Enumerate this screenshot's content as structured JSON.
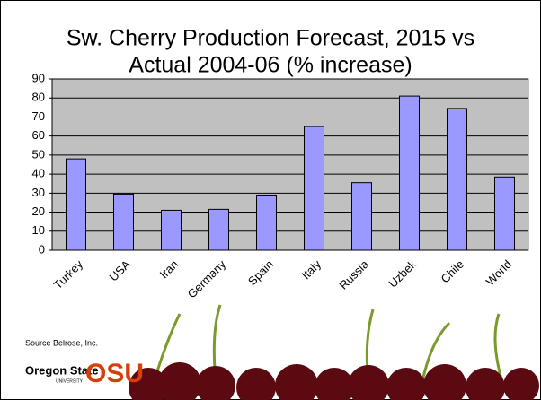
{
  "chart_data": {
    "type": "bar",
    "title": "Sw. Cherry Production Forecast, 2015 vs",
    "subtitle": "Actual 2004-06 (% increase)",
    "categories": [
      "Turkey",
      "USA",
      "Iran",
      "Germany",
      "Spain",
      "Italy",
      "Russia",
      "Uzbek",
      "Chile",
      "World"
    ],
    "values": [
      48,
      29.5,
      21,
      21.5,
      29,
      65,
      35.5,
      81,
      74.5,
      38.5
    ],
    "color": "#9999ff",
    "ylim": [
      0,
      90
    ],
    "yticks": [
      0,
      10,
      20,
      30,
      40,
      50,
      60,
      70,
      80,
      90
    ],
    "grid": true,
    "source": "Source Belrose, Inc."
  },
  "logo": {
    "name": "Oregon State",
    "mark": "OSU",
    "sub": "UNIVERSITY"
  }
}
